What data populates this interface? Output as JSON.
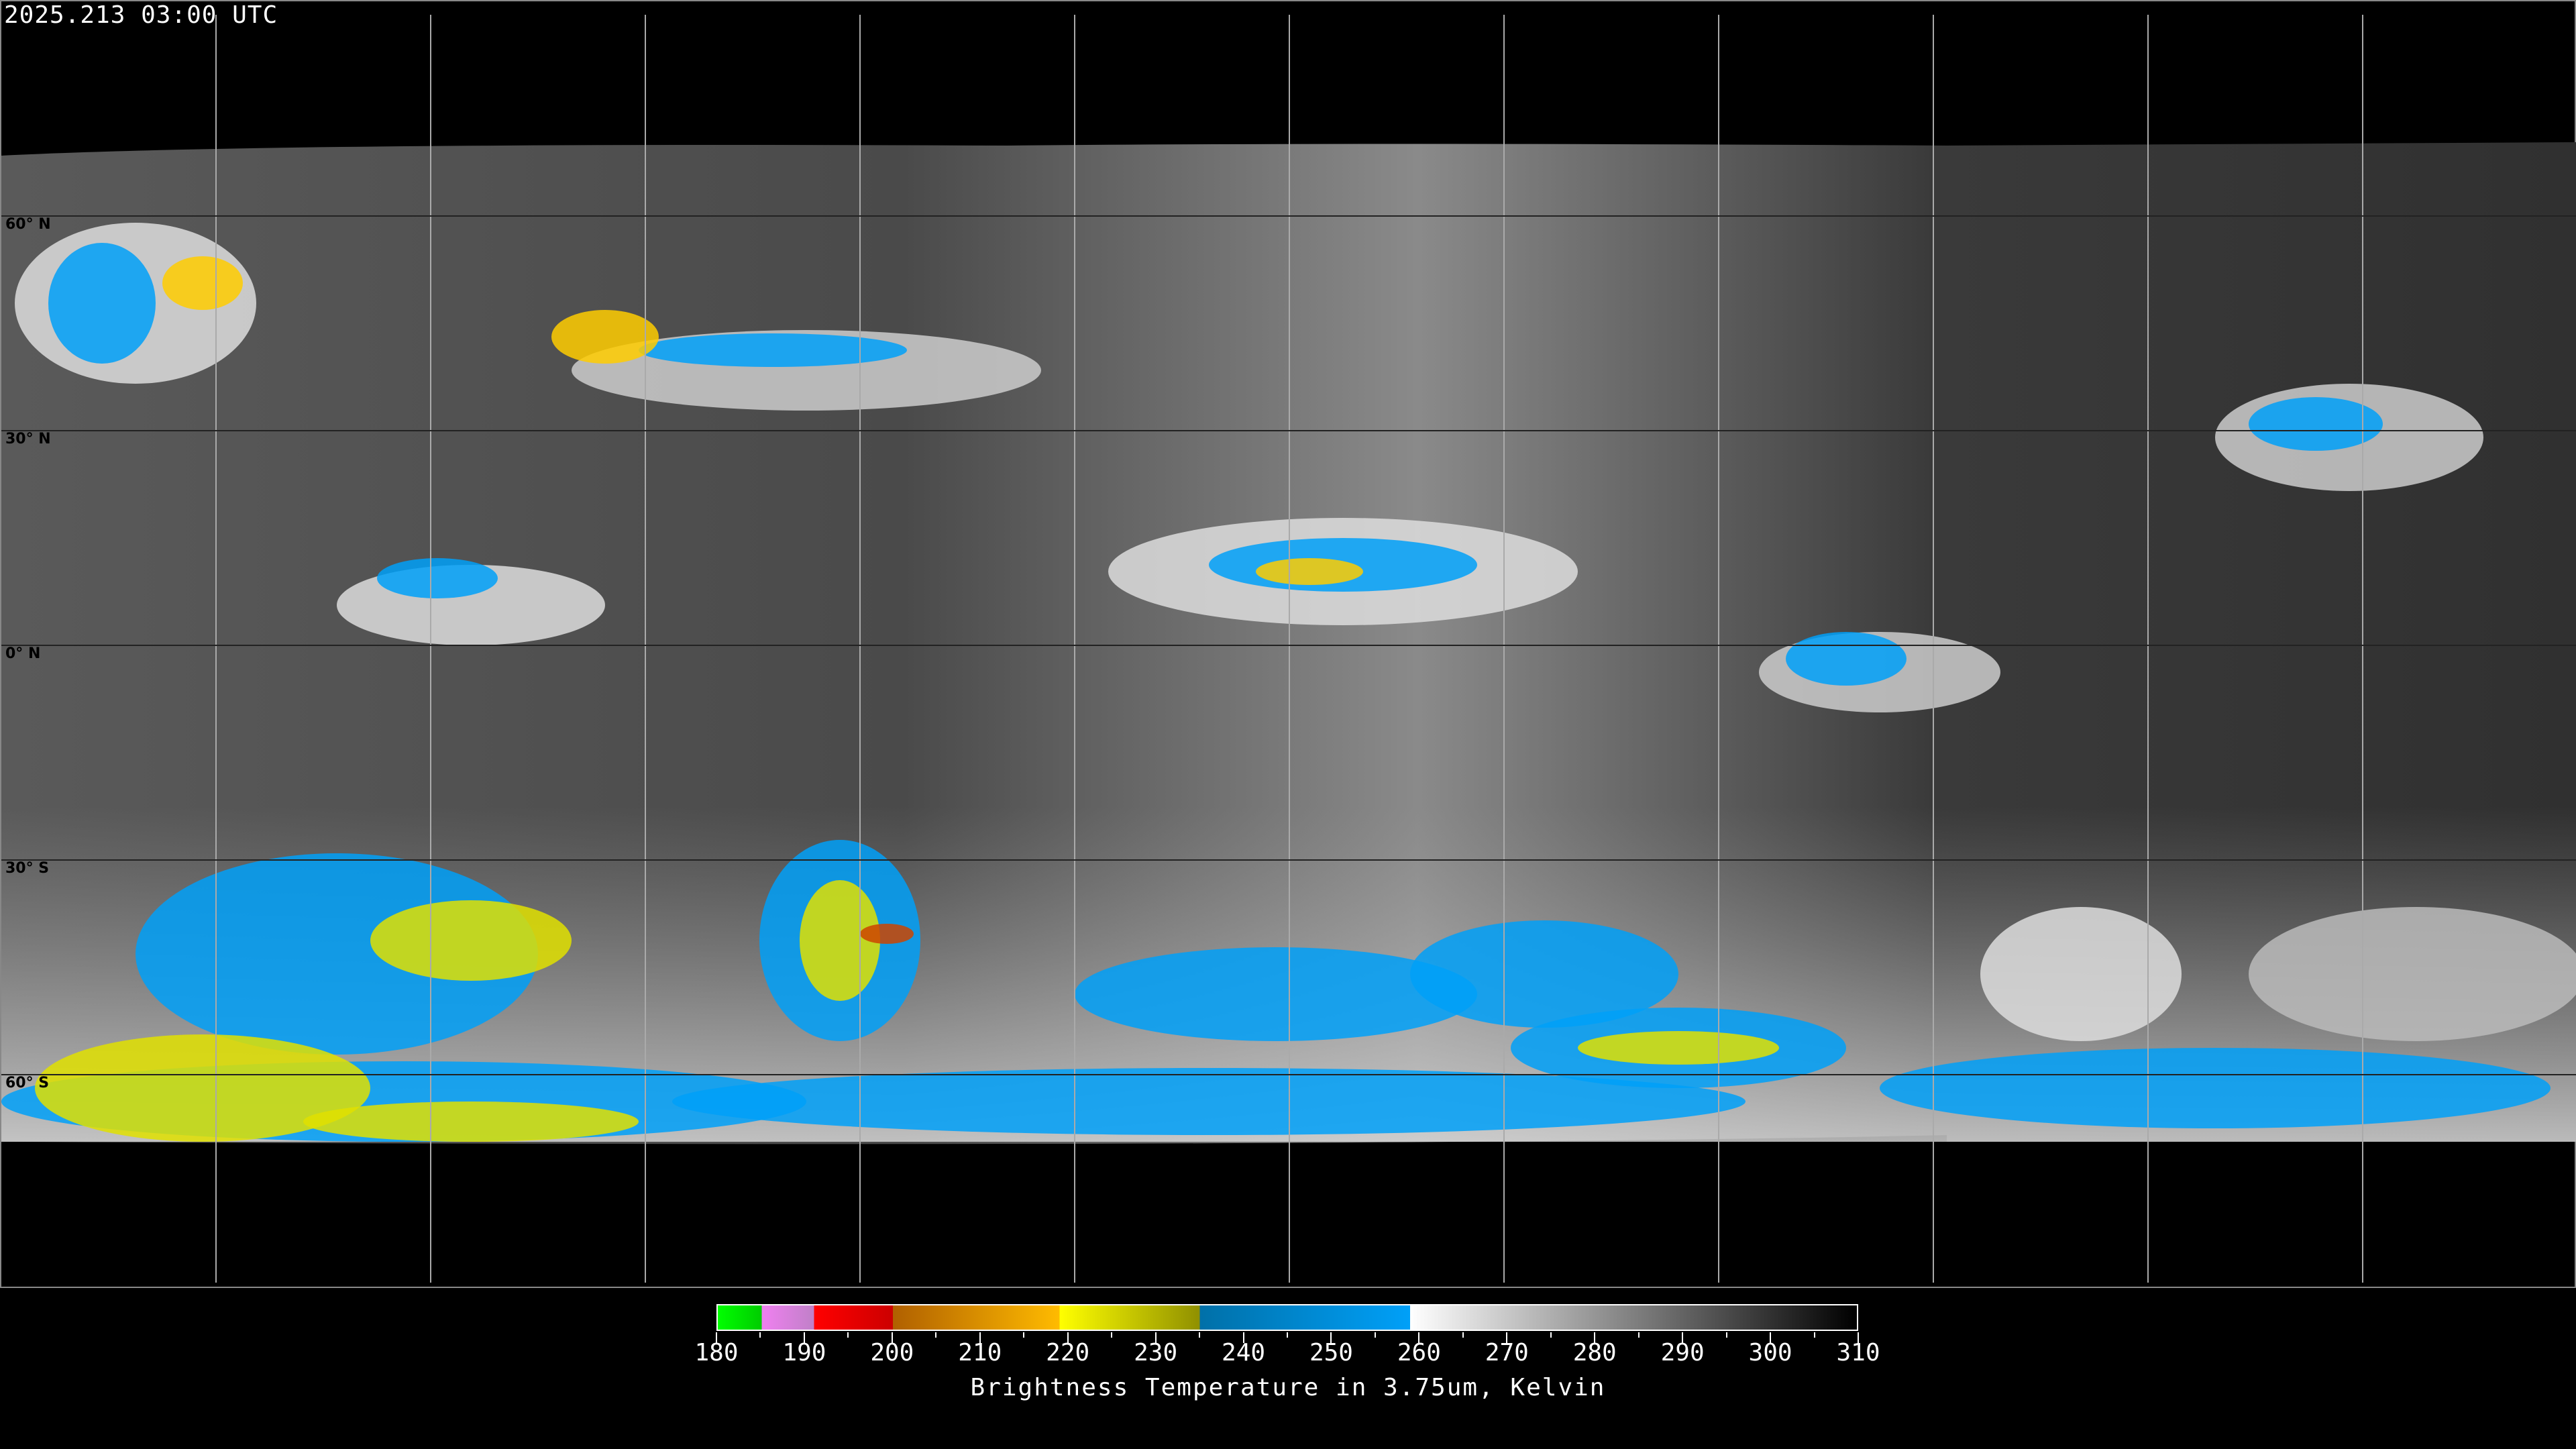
{
  "header": {
    "timestamp": "2025.213 03:00 UTC"
  },
  "map": {
    "projection": "equirectangular",
    "latitude_labels": [
      "60° N",
      "30° N",
      "0° N",
      "30° S",
      "60° S"
    ],
    "grid_lons": [
      -150,
      -120,
      -90,
      -60,
      -30,
      0,
      30,
      60,
      90,
      120,
      150
    ]
  },
  "colorbar": {
    "title": "Brightness Temperature in 3.75um, Kelvin",
    "min": 180,
    "max": 310,
    "tick_labels": [
      "180",
      "190",
      "200",
      "210",
      "220",
      "230",
      "240",
      "250",
      "260",
      "270",
      "280",
      "290",
      "300",
      "310"
    ],
    "segments": [
      {
        "from": 180,
        "to": 185,
        "colors": [
          "#00ff00",
          "#00cc00"
        ]
      },
      {
        "from": 185,
        "to": 191,
        "colors": [
          "#f080f0",
          "#c080c8"
        ]
      },
      {
        "from": 191,
        "to": 200,
        "colors": [
          "#ff0000",
          "#cc0000"
        ]
      },
      {
        "from": 200,
        "to": 219,
        "colors": [
          "#b06000",
          "#ffbb00"
        ]
      },
      {
        "from": 219,
        "to": 235,
        "colors": [
          "#ffff00",
          "#909000"
        ]
      },
      {
        "from": 235,
        "to": 259,
        "colors": [
          "#0070a8",
          "#00a0f8"
        ]
      },
      {
        "from": 259,
        "to": 310,
        "colors": [
          "#ffffff",
          "#000000"
        ]
      }
    ]
  }
}
